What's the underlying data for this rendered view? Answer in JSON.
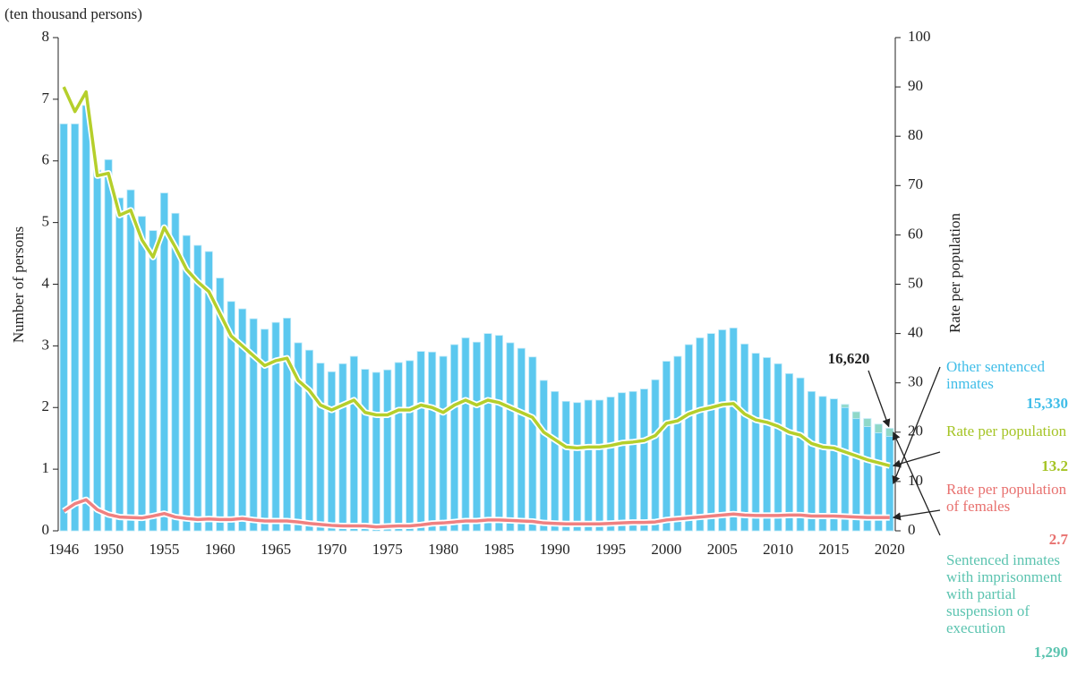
{
  "chart_data": {
    "type": "bar-line",
    "unit_label": "(ten thousand persons)",
    "y_label": "Number of persons",
    "y2_label": "Rate per population",
    "x": [
      1946,
      1947,
      1948,
      1949,
      1950,
      1951,
      1952,
      1953,
      1954,
      1955,
      1956,
      1957,
      1958,
      1959,
      1960,
      1961,
      1962,
      1963,
      1964,
      1965,
      1966,
      1967,
      1968,
      1969,
      1970,
      1971,
      1972,
      1973,
      1974,
      1975,
      1976,
      1977,
      1978,
      1979,
      1980,
      1981,
      1982,
      1983,
      1984,
      1985,
      1986,
      1987,
      1988,
      1989,
      1990,
      1991,
      1992,
      1993,
      1994,
      1995,
      1996,
      1997,
      1998,
      1999,
      2000,
      2001,
      2002,
      2003,
      2004,
      2005,
      2006,
      2007,
      2008,
      2009,
      2010,
      2011,
      2012,
      2013,
      2014,
      2015,
      2016,
      2017,
      2018,
      2019,
      2020
    ],
    "xlim": [
      1945.5,
      2020.5
    ],
    "xticks": [
      1946,
      1950,
      1955,
      1960,
      1965,
      1970,
      1975,
      1980,
      1985,
      1990,
      1995,
      2000,
      2005,
      2010,
      2015,
      2020
    ],
    "ylim": [
      0,
      8
    ],
    "yticks": [
      0,
      1,
      2,
      3,
      4,
      5,
      6,
      7,
      8
    ],
    "y2lim": [
      0,
      100
    ],
    "y2ticks": [
      0,
      10,
      20,
      30,
      40,
      50,
      60,
      70,
      80,
      90,
      100
    ],
    "series": [
      {
        "name": "Other sentenced inmates",
        "kind": "bar",
        "color": "#5bc8ef",
        "values": [
          6.6,
          6.6,
          6.9,
          5.85,
          6.02,
          5.4,
          5.53,
          5.1,
          4.87,
          5.48,
          5.15,
          4.79,
          4.63,
          4.53,
          4.1,
          3.72,
          3.6,
          3.44,
          3.27,
          3.38,
          3.45,
          3.05,
          2.93,
          2.72,
          2.58,
          2.71,
          2.83,
          2.62,
          2.57,
          2.61,
          2.73,
          2.76,
          2.91,
          2.9,
          2.83,
          3.02,
          3.13,
          3.06,
          3.2,
          3.17,
          3.05,
          2.96,
          2.82,
          2.44,
          2.26,
          2.1,
          2.08,
          2.12,
          2.12,
          2.17,
          2.24,
          2.26,
          2.3,
          2.45,
          2.75,
          2.83,
          3.02,
          3.13,
          3.2,
          3.26,
          3.29,
          3.03,
          2.88,
          2.81,
          2.71,
          2.55,
          2.48,
          2.26,
          2.18,
          2.14,
          2.0,
          1.82,
          1.69,
          1.59,
          1.533
        ],
        "value_labels": [
          null,
          null,
          null,
          null,
          null,
          null,
          null,
          null,
          null,
          null,
          null,
          null,
          null,
          null,
          null,
          null,
          null,
          null,
          null,
          null,
          null,
          null,
          null,
          null,
          null,
          null,
          null,
          null,
          null,
          null,
          null,
          null,
          null,
          null,
          null,
          null,
          null,
          null,
          null,
          null,
          null,
          null,
          null,
          null,
          null,
          null,
          null,
          null,
          null,
          null,
          null,
          null,
          null,
          null,
          null,
          null,
          null,
          null,
          null,
          null,
          null,
          null,
          null,
          null,
          null,
          null,
          null,
          null,
          null,
          null,
          null,
          null,
          null,
          null,
          "15,330"
        ]
      },
      {
        "name": "Sentenced inmates with imprisonment with partial suspension of execution",
        "kind": "bar",
        "color": "#8fd8c8",
        "values": [
          null,
          null,
          null,
          null,
          null,
          null,
          null,
          null,
          null,
          null,
          null,
          null,
          null,
          null,
          null,
          null,
          null,
          null,
          null,
          null,
          null,
          null,
          null,
          null,
          null,
          null,
          null,
          null,
          null,
          null,
          null,
          null,
          null,
          null,
          null,
          null,
          null,
          null,
          null,
          null,
          null,
          null,
          null,
          null,
          null,
          null,
          null,
          null,
          null,
          null,
          null,
          null,
          null,
          null,
          null,
          null,
          null,
          null,
          null,
          null,
          null,
          null,
          null,
          null,
          null,
          null,
          null,
          null,
          null,
          null,
          0.05,
          0.11,
          0.13,
          0.14,
          0.129
        ],
        "value_labels": [
          null,
          null,
          null,
          null,
          null,
          null,
          null,
          null,
          null,
          null,
          null,
          null,
          null,
          null,
          null,
          null,
          null,
          null,
          null,
          null,
          null,
          null,
          null,
          null,
          null,
          null,
          null,
          null,
          null,
          null,
          null,
          null,
          null,
          null,
          null,
          null,
          null,
          null,
          null,
          null,
          null,
          null,
          null,
          null,
          null,
          null,
          null,
          null,
          null,
          null,
          null,
          null,
          null,
          null,
          null,
          null,
          null,
          null,
          null,
          null,
          null,
          null,
          null,
          null,
          null,
          null,
          null,
          null,
          null,
          null,
          null,
          null,
          null,
          null,
          "1,290"
        ]
      },
      {
        "name": "Rate per population",
        "kind": "line",
        "axis": "y2",
        "color": "#b5cf2b",
        "values": [
          90,
          85,
          89,
          72,
          72.5,
          64,
          65,
          59,
          55.5,
          61.5,
          57.5,
          53,
          50.5,
          48.5,
          44,
          39.5,
          37.5,
          35.5,
          33.5,
          34.5,
          35,
          30.5,
          28.5,
          25.5,
          24.5,
          25.5,
          26.5,
          24,
          23.5,
          23.5,
          24.5,
          24.5,
          25.5,
          25,
          24,
          25.5,
          26.5,
          25.5,
          26.5,
          26,
          25,
          24,
          23,
          20,
          18.5,
          17,
          16.8,
          17,
          17,
          17.3,
          17.8,
          18,
          18.3,
          19.3,
          21.8,
          22.3,
          23.7,
          24.5,
          25,
          25.6,
          25.8,
          23.7,
          22.5,
          22,
          21.2,
          20,
          19.4,
          17.7,
          17,
          16.8,
          16,
          15.2,
          14.4,
          13.8,
          13.2
        ]
      },
      {
        "name": "Rate per population of females",
        "kind": "line",
        "axis": "y2",
        "color": "#f08080",
        "values": [
          4,
          5.5,
          6.3,
          4.3,
          3.3,
          2.8,
          2.7,
          2.6,
          3,
          3.5,
          2.8,
          2.5,
          2.3,
          2.4,
          2.3,
          2.3,
          2.5,
          2.2,
          2,
          2,
          2,
          1.8,
          1.5,
          1.3,
          1.1,
          1,
          1,
          1,
          0.8,
          0.9,
          1,
          1,
          1.2,
          1.5,
          1.6,
          1.8,
          2,
          2,
          2.2,
          2.2,
          2.1,
          2,
          1.9,
          1.6,
          1.5,
          1.4,
          1.4,
          1.4,
          1.4,
          1.5,
          1.6,
          1.7,
          1.7,
          1.8,
          2.2,
          2.4,
          2.6,
          2.8,
          3,
          3.2,
          3.4,
          3.2,
          3.1,
          3.1,
          3.1,
          3.2,
          3.2,
          3,
          3,
          3,
          2.9,
          2.8,
          2.7,
          2.7,
          2.7
        ]
      }
    ],
    "annotations": [
      {
        "label": "16,620",
        "value": 1.662
      }
    ]
  }
}
